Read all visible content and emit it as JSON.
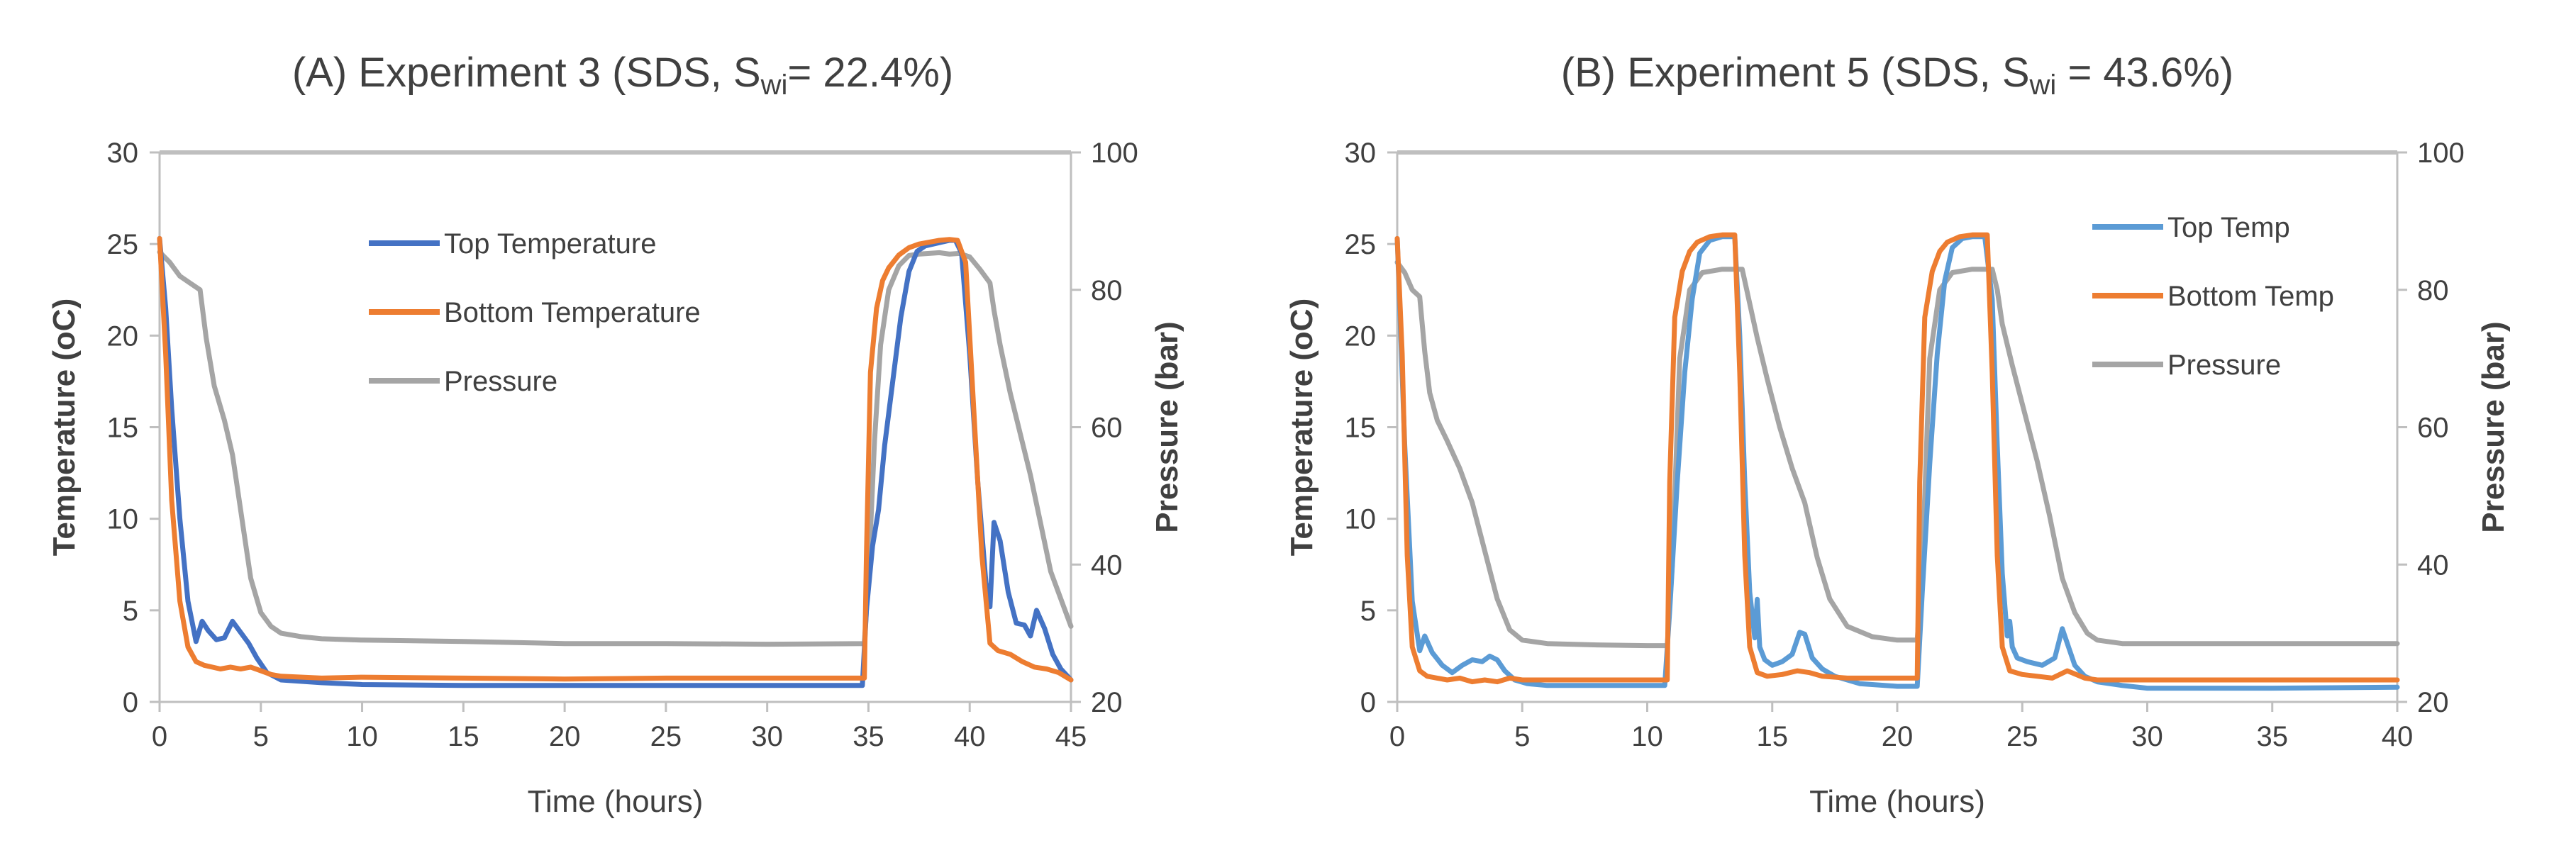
{
  "colors": {
    "top_blue_a": "#4472C4",
    "top_blue_b": "#5B9BD5",
    "orange": "#ED7D31",
    "gray": "#A5A5A5",
    "axis": "#BFBFBF",
    "text": "#404040"
  },
  "chart_data": [
    {
      "panel": "A",
      "type": "line",
      "title_main": "(A) Experiment  3 (SDS, S",
      "title_sub": "wi",
      "title_end": "= 22.4%)",
      "xlabel": "Time (hours)",
      "ylabel": "Temperature (oC)",
      "y2label": "Pressure (bar)",
      "xlim": [
        0,
        45
      ],
      "ylim": [
        0,
        30
      ],
      "y2lim": [
        20,
        100
      ],
      "xticks": [
        0,
        5,
        10,
        15,
        20,
        25,
        30,
        35,
        40,
        45
      ],
      "yticks": [
        0,
        5,
        10,
        15,
        20,
        25,
        30
      ],
      "y2ticks": [
        20,
        40,
        60,
        80,
        100
      ],
      "legend_position": "upper-left",
      "series": [
        {
          "name": "Top Temperature",
          "axis": "left",
          "color": "#4472C4",
          "x": [
            0,
            0.3,
            0.6,
            1.0,
            1.4,
            1.8,
            2.1,
            2.4,
            2.8,
            3.2,
            3.6,
            4.0,
            4.4,
            4.8,
            5.3,
            6,
            8,
            10,
            15,
            20,
            25,
            30,
            34.7,
            34.9,
            35.2,
            35.5,
            35.8,
            36.2,
            36.6,
            37.0,
            37.4,
            37.8,
            38.2,
            38.6,
            39.0,
            39.3,
            39.6,
            40.0,
            40.4,
            40.8,
            41.0,
            41.2,
            41.5,
            41.9,
            42.3,
            42.7,
            43.0,
            43.3,
            43.7,
            44.1,
            44.5,
            45
          ],
          "y": [
            25.3,
            21.5,
            16,
            10,
            5.5,
            3.3,
            4.4,
            3.9,
            3.4,
            3.5,
            4.4,
            3.8,
            3.2,
            2.4,
            1.6,
            1.2,
            1.05,
            0.95,
            0.9,
            0.9,
            0.9,
            0.9,
            0.9,
            5,
            8.5,
            10.5,
            14,
            17.5,
            21,
            23.5,
            24.6,
            24.9,
            25.0,
            25.1,
            25.2,
            25.2,
            24.5,
            19,
            12,
            6.5,
            5.2,
            9.8,
            8.8,
            6,
            4.3,
            4.2,
            3.6,
            5.0,
            4.0,
            2.6,
            1.8,
            1.2
          ]
        },
        {
          "name": "Bottom Temperature",
          "axis": "left",
          "color": "#ED7D31",
          "x": [
            0,
            0.3,
            0.6,
            1.0,
            1.4,
            1.8,
            2.2,
            2.6,
            3.0,
            3.5,
            4.0,
            4.5,
            5.0,
            5.5,
            6,
            8,
            10,
            15,
            20,
            25,
            30,
            34.8,
            34.9,
            35.1,
            35.4,
            35.7,
            36.0,
            36.5,
            37.0,
            37.5,
            38.0,
            38.5,
            39.0,
            39.4,
            39.8,
            40.2,
            40.6,
            41.0,
            41.4,
            42.0,
            42.6,
            43.2,
            43.8,
            44.4,
            45
          ],
          "y": [
            25.3,
            19,
            11,
            5.5,
            3.0,
            2.2,
            2.0,
            1.9,
            1.8,
            1.9,
            1.8,
            1.9,
            1.7,
            1.5,
            1.4,
            1.3,
            1.35,
            1.3,
            1.25,
            1.3,
            1.3,
            1.3,
            8,
            18,
            21.5,
            23,
            23.7,
            24.4,
            24.8,
            25.0,
            25.1,
            25.2,
            25.25,
            25.2,
            24.0,
            16,
            8,
            3.2,
            2.8,
            2.6,
            2.2,
            1.9,
            1.8,
            1.6,
            1.2
          ]
        },
        {
          "name": "Pressure",
          "axis": "right",
          "color": "#A5A5A5",
          "x": [
            0,
            0.5,
            1.0,
            1.5,
            2.0,
            2.3,
            2.7,
            3.2,
            3.6,
            4.0,
            4.5,
            5.0,
            5.5,
            6,
            7,
            8,
            10,
            15,
            20,
            25,
            30,
            34.8,
            35.0,
            35.3,
            35.6,
            36.0,
            36.5,
            37.0,
            37.5,
            38.0,
            38.5,
            39.0,
            39.5,
            40.0,
            40.5,
            41.0,
            41.2,
            41.5,
            42.0,
            42.5,
            43.0,
            43.5,
            44.0,
            44.5,
            45
          ],
          "y": [
            85.5,
            84,
            82,
            81,
            80,
            73,
            66,
            61,
            56,
            48,
            38,
            33,
            31,
            30,
            29.5,
            29.2,
            29.0,
            28.8,
            28.5,
            28.5,
            28.4,
            28.5,
            38,
            58,
            72,
            80,
            83.5,
            85,
            85.2,
            85.3,
            85.4,
            85.2,
            85.3,
            84.8,
            83,
            81,
            77,
            72,
            65,
            59,
            53,
            46,
            39,
            35,
            31
          ]
        }
      ]
    },
    {
      "panel": "B",
      "type": "line",
      "title_main": "(B) Experiment 5 (SDS, S",
      "title_sub": "wi",
      "title_end": " = 43.6%)",
      "xlabel": "Time (hours)",
      "ylabel": "Temperature (oC)",
      "y2label": "Pressure (bar)",
      "xlim": [
        0,
        40
      ],
      "ylim": [
        0,
        30
      ],
      "y2lim": [
        20,
        100
      ],
      "xticks": [
        0,
        5,
        10,
        15,
        20,
        25,
        30,
        35,
        40
      ],
      "yticks": [
        0,
        5,
        10,
        15,
        20,
        25,
        30
      ],
      "y2ticks": [
        20,
        40,
        60,
        80,
        100
      ],
      "legend_position": "upper-right",
      "series": [
        {
          "name": "Top Temp",
          "axis": "left",
          "color": "#5B9BD5",
          "x": [
            0,
            0.3,
            0.6,
            0.9,
            1.1,
            1.4,
            1.8,
            2.2,
            2.6,
            3.0,
            3.4,
            3.7,
            4.0,
            4.3,
            4.7,
            5.2,
            6,
            8,
            10,
            10.7,
            10.9,
            11.2,
            11.5,
            11.8,
            12.1,
            12.5,
            13.0,
            13.5,
            13.7,
            13.9,
            14.1,
            14.3,
            14.4,
            14.5,
            14.7,
            15.0,
            15.4,
            15.8,
            16.1,
            16.3,
            16.6,
            17.0,
            17.5,
            18.5,
            20,
            20.8,
            21.0,
            21.3,
            21.6,
            21.9,
            22.2,
            22.6,
            23.0,
            23.5,
            23.8,
            24.0,
            24.2,
            24.4,
            24.5,
            24.6,
            24.8,
            25.2,
            25.8,
            26.3,
            26.6,
            26.8,
            27.1,
            27.5,
            28,
            29,
            30,
            35,
            40
          ],
          "y": [
            25.3,
            14,
            5.5,
            2.8,
            3.6,
            2.7,
            2.0,
            1.6,
            2.0,
            2.3,
            2.2,
            2.5,
            2.3,
            1.7,
            1.2,
            1.0,
            0.9,
            0.9,
            0.9,
            0.9,
            5,
            12,
            18,
            22,
            24.5,
            25.2,
            25.4,
            25.4,
            20,
            12,
            6,
            3.5,
            5.6,
            3.0,
            2.3,
            2.0,
            2.2,
            2.6,
            3.8,
            3.7,
            2.4,
            1.8,
            1.4,
            1.0,
            0.85,
            0.85,
            6,
            13,
            19,
            23,
            24.8,
            25.3,
            25.4,
            25.4,
            22,
            14,
            7,
            3.6,
            4.4,
            3.0,
            2.4,
            2.2,
            2.0,
            2.4,
            4.0,
            3.2,
            2.0,
            1.4,
            1.1,
            0.9,
            0.75,
            0.75,
            0.8
          ]
        },
        {
          "name": "Bottom Temp",
          "axis": "left",
          "color": "#ED7D31",
          "x": [
            0,
            0.2,
            0.4,
            0.6,
            0.9,
            1.2,
            1.6,
            2.0,
            2.5,
            3.0,
            3.5,
            4.0,
            4.5,
            5,
            6,
            8,
            10,
            10.8,
            10.9,
            11.1,
            11.4,
            11.7,
            12.0,
            12.5,
            13.0,
            13.5,
            13.7,
            13.9,
            14.1,
            14.4,
            14.8,
            15.4,
            16.0,
            16.5,
            17.0,
            18,
            20,
            20.8,
            20.9,
            21.1,
            21.4,
            21.7,
            22.0,
            22.5,
            23.0,
            23.6,
            23.8,
            24.0,
            24.2,
            24.5,
            25.0,
            25.6,
            26.2,
            26.8,
            27.5,
            28,
            30,
            35,
            40
          ],
          "y": [
            25.3,
            19,
            8,
            3.0,
            1.7,
            1.4,
            1.3,
            1.2,
            1.3,
            1.1,
            1.2,
            1.1,
            1.3,
            1.2,
            1.2,
            1.2,
            1.2,
            1.2,
            12,
            21,
            23.5,
            24.6,
            25.1,
            25.4,
            25.5,
            25.5,
            18,
            8,
            3.0,
            1.6,
            1.4,
            1.5,
            1.7,
            1.6,
            1.4,
            1.3,
            1.3,
            1.3,
            12,
            21,
            23.5,
            24.6,
            25.1,
            25.4,
            25.5,
            25.5,
            18,
            8,
            3.0,
            1.7,
            1.5,
            1.4,
            1.3,
            1.7,
            1.3,
            1.2,
            1.2,
            1.2,
            1.2
          ]
        },
        {
          "name": "Pressure",
          "axis": "right",
          "color": "#A5A5A5",
          "x": [
            0,
            0.3,
            0.6,
            0.9,
            1.1,
            1.3,
            1.6,
            2.0,
            2.5,
            3.0,
            3.5,
            4.0,
            4.5,
            5,
            6,
            8,
            10,
            10.8,
            11.0,
            11.3,
            11.7,
            12.2,
            13,
            13.8,
            14.1,
            14.4,
            14.8,
            15.3,
            15.8,
            16.3,
            16.8,
            17.3,
            18,
            19,
            20,
            20.8,
            21.0,
            21.3,
            21.7,
            22.2,
            23,
            23.8,
            24.0,
            24.2,
            24.6,
            25.1,
            25.6,
            26.1,
            26.6,
            27.1,
            27.6,
            28,
            29,
            30,
            35,
            40
          ],
          "y": [
            84,
            82.5,
            80,
            79,
            71,
            65,
            61,
            58,
            54,
            49,
            42,
            35,
            30.5,
            29,
            28.5,
            28.3,
            28.2,
            28.2,
            40,
            70,
            80,
            82.5,
            83,
            83,
            78,
            73,
            67,
            60,
            54,
            49,
            41,
            35,
            31,
            29.5,
            29,
            29,
            40,
            70,
            80,
            82.5,
            83,
            83,
            80,
            75,
            69,
            62,
            55,
            47,
            38,
            33,
            30,
            29,
            28.5,
            28.5,
            28.5,
            28.5
          ]
        }
      ]
    }
  ]
}
